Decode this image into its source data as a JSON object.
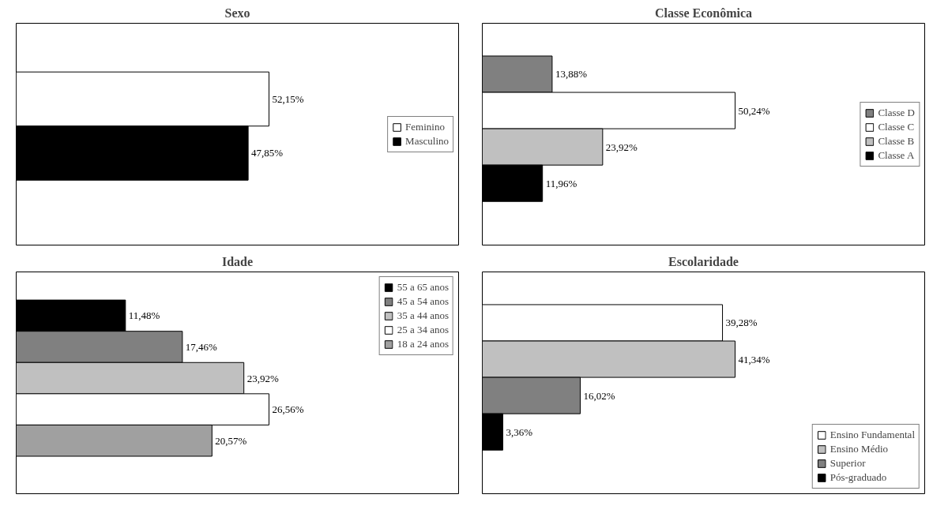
{
  "chart_data": [
    {
      "type": "bar",
      "orientation": "horizontal",
      "title": "Sexo",
      "categories": [
        null
      ],
      "legend": "right",
      "series": [
        {
          "name": "Feminino",
          "color": "#ffffff",
          "values": [
            52.15
          ],
          "value_labels": [
            "52,15%"
          ]
        },
        {
          "name": "Masculino",
          "color": "#000000",
          "values": [
            47.85
          ],
          "value_labels": [
            "47,85%"
          ]
        }
      ]
    },
    {
      "type": "bar",
      "orientation": "horizontal",
      "title": "Classe Econômica",
      "categories": [
        null
      ],
      "legend": "right",
      "series": [
        {
          "name": "Classe D",
          "color": "#808080",
          "values": [
            13.88
          ],
          "value_labels": [
            "13,88%"
          ]
        },
        {
          "name": "Classe C",
          "color": "#ffffff",
          "values": [
            50.24
          ],
          "value_labels": [
            "50,24%"
          ]
        },
        {
          "name": "Classe B",
          "color": "#c0c0c0",
          "values": [
            23.92
          ],
          "value_labels": [
            "23,92%"
          ]
        },
        {
          "name": "Classe A",
          "color": "#000000",
          "values": [
            11.96
          ],
          "value_labels": [
            "11,96%"
          ]
        }
      ]
    },
    {
      "type": "bar",
      "orientation": "horizontal",
      "title": "Idade",
      "categories": [
        null
      ],
      "legend": "top right",
      "series": [
        {
          "name": "55 a 65 anos",
          "color": "#000000",
          "values": [
            11.48
          ],
          "value_labels": [
            "11,48%"
          ]
        },
        {
          "name": "45 a 54 anos",
          "color": "#808080",
          "values": [
            17.46
          ],
          "value_labels": [
            "17,46%"
          ]
        },
        {
          "name": "35 a 44 anos",
          "color": "#c0c0c0",
          "values": [
            23.92
          ],
          "value_labels": [
            "23,92%"
          ]
        },
        {
          "name": "25 a 34 anos",
          "color": "#ffffff",
          "values": [
            26.56
          ],
          "value_labels": [
            "26,56%"
          ]
        },
        {
          "name": "18 a 24 anos",
          "color": "#a0a0a0",
          "values": [
            20.57
          ],
          "value_labels": [
            "20,57%"
          ]
        }
      ]
    },
    {
      "type": "bar",
      "orientation": "horizontal",
      "title": "Escolaridade",
      "categories": [
        null
      ],
      "legend": "bottom right",
      "series": [
        {
          "name": "Ensino Fundamental",
          "color": "#ffffff",
          "values": [
            39.28
          ],
          "value_labels": [
            "39,28%"
          ]
        },
        {
          "name": "Ensino Médio",
          "color": "#c0c0c0",
          "values": [
            41.34
          ],
          "value_labels": [
            "41,34%"
          ]
        },
        {
          "name": "Superior",
          "color": "#808080",
          "values": [
            16.02
          ],
          "value_labels": [
            "16,02%"
          ]
        },
        {
          "name": "Pós-graduado",
          "color": "#000000",
          "values": [
            3.36
          ],
          "value_labels": [
            "3,36%"
          ]
        }
      ]
    }
  ]
}
